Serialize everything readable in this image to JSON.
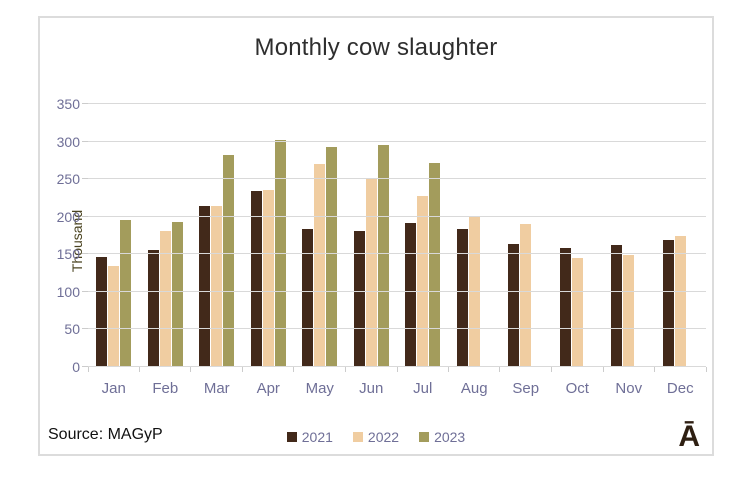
{
  "title": "Monthly cow slaughter",
  "source_label": "Source: MAGyP",
  "watermark": "Ā",
  "colors": {
    "series_2021": "#42291a",
    "series_2022": "#f0cda1",
    "series_2023": "#a39c5c",
    "axis_text": "#6f6f97",
    "ylabel_text": "#4a431f",
    "gridline": "#d9d9d9",
    "frame_border": "#dcdcdc",
    "title_text": "#2e2e2e"
  },
  "chart_data": {
    "type": "bar",
    "title": "Monthly cow slaughter",
    "xlabel": "",
    "ylabel": "Thousand",
    "ylim": [
      0,
      350
    ],
    "ytick_step": 50,
    "yticks": [
      0,
      50,
      100,
      150,
      200,
      250,
      300,
      350
    ],
    "grid": true,
    "legend_position": "bottom",
    "categories": [
      "Jan",
      "Feb",
      "Mar",
      "Apr",
      "May",
      "Jun",
      "Jul",
      "Aug",
      "Sep",
      "Oct",
      "Nov",
      "Dec"
    ],
    "series": [
      {
        "name": "2021",
        "color": "#42291a",
        "values": [
          147,
          156,
          214,
          234,
          184,
          181,
          192,
          184,
          164,
          158,
          163,
          169
        ]
      },
      {
        "name": "2022",
        "color": "#f0cda1",
        "values": [
          135,
          181,
          214,
          236,
          270,
          250,
          228,
          201,
          190,
          145,
          149,
          174
        ]
      },
      {
        "name": "2023",
        "color": "#a39c5c",
        "values": [
          196,
          193,
          282,
          302,
          293,
          296,
          272,
          null,
          null,
          null,
          null,
          null
        ]
      }
    ]
  }
}
